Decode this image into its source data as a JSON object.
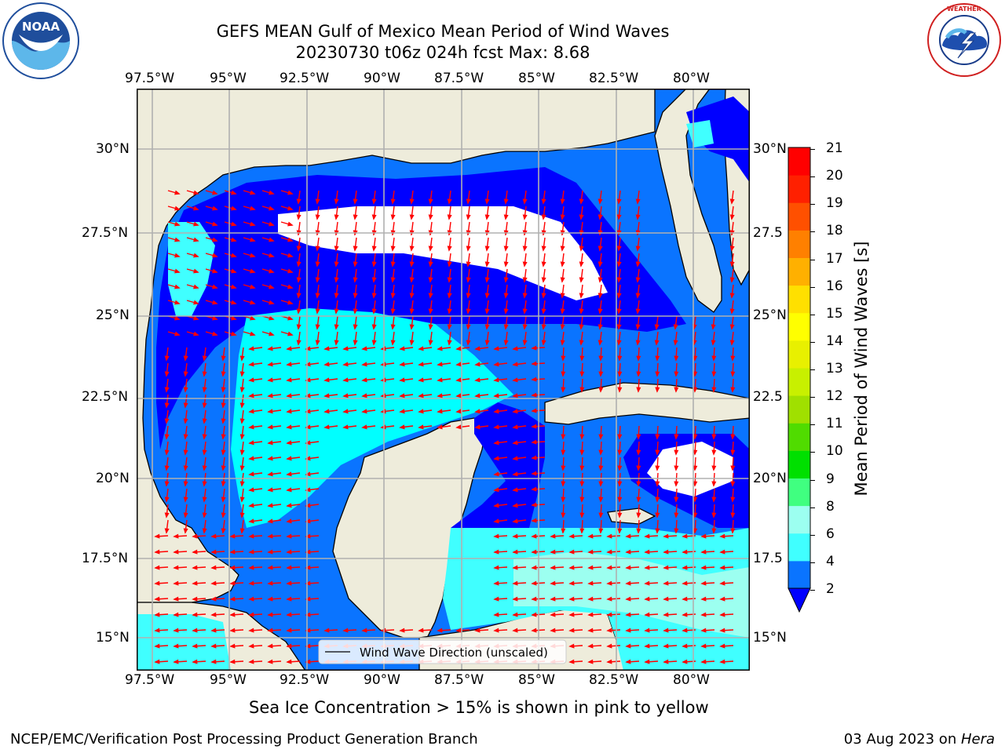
{
  "header": {
    "title_line1": "GEFS MEAN Gulf of Mexico Mean Period of Wind Waves",
    "title_line2": "20230730 t06z 024h fcst   Max: 8.68"
  },
  "logos": {
    "noaa_text": "NOAA",
    "noaa_ring_text": "NATIONAL OCEANIC AND ATMOSPHERIC ADMINISTRATION",
    "noaa_ring_bottom": "U.S. DEPARTMENT OF COMMERCE",
    "nws_ring_text": "NATIONAL WEATHER SERVICE"
  },
  "map": {
    "lon_labels": [
      "97.5°W",
      "95°W",
      "92.5°W",
      "90°W",
      "87.5°W",
      "85°W",
      "82.5°W",
      "80°W"
    ],
    "lat_labels_left": [
      "30°N",
      "27.5°N",
      "25°N",
      "22.5°N",
      "20°N",
      "17.5°N",
      "15°N"
    ],
    "lat_labels_right": [
      "30°N",
      "27.5",
      "25°N",
      "22.5",
      "20°N",
      "17.5",
      "15°N"
    ],
    "legend_label": "Wind Wave Direction (unscaled)",
    "colors": {
      "land": "#eeecdb",
      "water_2_4": "#0a74ff",
      "water_low": "#0000ff",
      "water_4_6": "#00ffff",
      "water_6_8": "#40ffff",
      "water_8_9": "#9cfff0",
      "no_data": "#ffffff",
      "arrow": "#ff0000",
      "grid": "#b0b0b0"
    }
  },
  "colorbar": {
    "label": "Mean Period of Wind Waves [s]",
    "ticks": [
      "2",
      "4",
      "6",
      "8",
      "9",
      "10",
      "11",
      "12",
      "13",
      "14",
      "15",
      "16",
      "17",
      "18",
      "19",
      "20",
      "21"
    ],
    "colors": [
      "#0a74ff",
      "#00ffff",
      "#40ffff",
      "#9cfff0",
      "#40ff80",
      "#00e000",
      "#50dc00",
      "#a0e000",
      "#c8f000",
      "#e8f000",
      "#ffff00",
      "#ffe000",
      "#ffb000",
      "#ff8000",
      "#ff5000",
      "#ff2000",
      "#ff0000"
    ]
  },
  "caption": "Sea Ice Concentration > 15% is shown in pink to yellow",
  "footer": {
    "left": "NCEP/EMC/Verification Post Processing Product Generation Branch",
    "right_date": "03 Aug 2023 on ",
    "right_machine": "Hera"
  }
}
